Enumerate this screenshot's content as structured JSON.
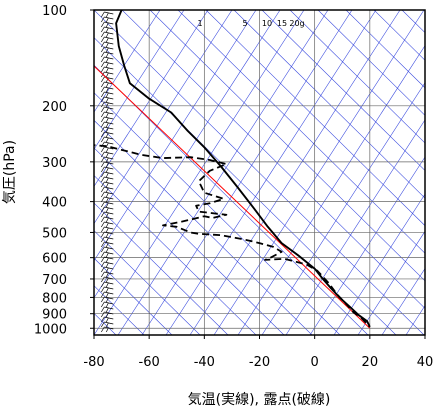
{
  "chart_data": {
    "type": "line",
    "title": "",
    "xlabel": "気温(実線), 露点(破線)",
    "ylabel": "気圧(hPa)",
    "x_ticks": [
      "-80",
      "-60",
      "-40",
      "-20",
      "0",
      "20",
      "40"
    ],
    "xlim": [
      -80,
      40
    ],
    "y_ticks": [
      "100",
      "200",
      "300",
      "400",
      "500",
      "600",
      "700",
      "800",
      "900",
      "1000"
    ],
    "ylim": [
      1050,
      100
    ],
    "yscale": "log",
    "mixing_ratio_labels": [
      "1",
      "5",
      "10",
      "15",
      "20g"
    ],
    "colors": {
      "background_lines": "#3344dd",
      "reference_line": "#ff0000",
      "profiles": "#000000"
    },
    "series": [
      {
        "style": "solid",
        "points": [
          [
            -70,
            100
          ],
          [
            -72,
            110
          ],
          [
            -71,
            130
          ],
          [
            -69,
            150
          ],
          [
            -67,
            170
          ],
          [
            -60,
            190
          ],
          [
            -52,
            210
          ],
          [
            -46,
            240
          ],
          [
            -40,
            270
          ],
          [
            -34,
            310
          ],
          [
            -28,
            360
          ],
          [
            -22,
            420
          ],
          [
            -17,
            480
          ],
          [
            -12,
            540
          ],
          [
            -6,
            590
          ],
          [
            0,
            650
          ],
          [
            3,
            700
          ],
          [
            6,
            750
          ],
          [
            9,
            800
          ],
          [
            13,
            860
          ],
          [
            16,
            910
          ],
          [
            19,
            950
          ],
          [
            20,
            990
          ]
        ]
      },
      {
        "style": "dashed",
        "points": [
          [
            -82,
            265
          ],
          [
            -75,
            268
          ],
          [
            -63,
            285
          ],
          [
            -55,
            292
          ],
          [
            -45,
            290
          ],
          [
            -38,
            296
          ],
          [
            -32,
            305
          ],
          [
            -38,
            320
          ],
          [
            -42,
            345
          ],
          [
            -40,
            375
          ],
          [
            -33,
            392
          ],
          [
            -38,
            405
          ],
          [
            -43,
            412
          ],
          [
            -42,
            430
          ],
          [
            -32,
            440
          ],
          [
            -37,
            450
          ],
          [
            -40,
            445
          ],
          [
            -48,
            462
          ],
          [
            -55,
            475
          ],
          [
            -50,
            480
          ],
          [
            -45,
            500
          ],
          [
            -42,
            505
          ],
          [
            -34,
            510
          ],
          [
            -26,
            525
          ],
          [
            -20,
            540
          ],
          [
            -15,
            555
          ],
          [
            -12,
            575
          ],
          [
            -16,
            600
          ],
          [
            -18,
            610
          ],
          [
            -11,
            605
          ],
          [
            -3,
            630
          ],
          [
            1,
            660
          ],
          [
            5,
            720
          ],
          [
            8,
            780
          ],
          [
            12,
            850
          ],
          [
            14,
            890
          ],
          [
            17,
            930
          ],
          [
            19,
            970
          ],
          [
            20,
            990
          ]
        ]
      }
    ],
    "reference_line": [
      [
        -80,
        150
      ],
      [
        20,
        1000
      ]
    ],
    "wind_barbs_x": -73
  }
}
